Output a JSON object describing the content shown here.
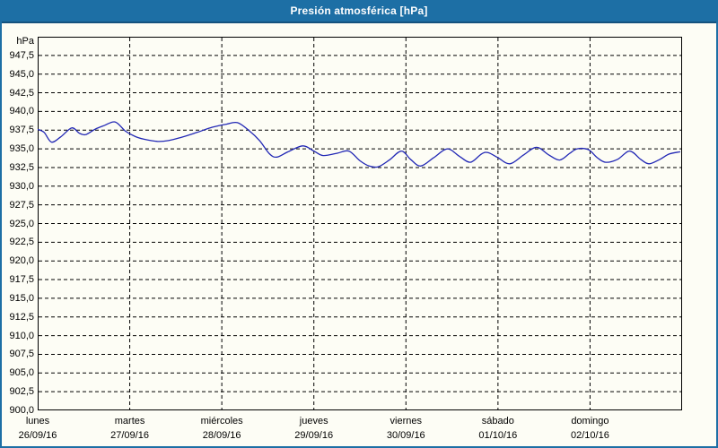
{
  "window": {
    "title": "Presión atmosférica [hPa]"
  },
  "colors": {
    "titlebar": "#1d6fa5",
    "titlebar_text": "#ffffff",
    "window_border": "#1d6fa5",
    "background": "#fdfdf5",
    "plot_border": "#000000",
    "grid": "#000000",
    "line": "#2228b5",
    "tick_text": "#000000"
  },
  "chart_data": {
    "type": "line",
    "title": "Presión atmosférica [hPa]",
    "y_unit_label": "hPa",
    "ylabel": "hPa",
    "xlabel": "",
    "ylim": [
      900,
      950
    ],
    "ytick_step": 2.5,
    "grid": "dashed",
    "legend_position": "none",
    "yticks": [
      {
        "value": 947.5,
        "label": "947,5"
      },
      {
        "value": 945.0,
        "label": "945,0"
      },
      {
        "value": 942.5,
        "label": "942,5"
      },
      {
        "value": 940.0,
        "label": "940,0"
      },
      {
        "value": 937.5,
        "label": "937,5"
      },
      {
        "value": 935.0,
        "label": "935,0"
      },
      {
        "value": 932.5,
        "label": "932,5"
      },
      {
        "value": 930.0,
        "label": "930,0"
      },
      {
        "value": 927.5,
        "label": "927,5"
      },
      {
        "value": 925.0,
        "label": "925,0"
      },
      {
        "value": 922.5,
        "label": "922,5"
      },
      {
        "value": 920.0,
        "label": "920,0"
      },
      {
        "value": 917.5,
        "label": "917,5"
      },
      {
        "value": 915.0,
        "label": "915,0"
      },
      {
        "value": 912.5,
        "label": "912,5"
      },
      {
        "value": 910.0,
        "label": "910,0"
      },
      {
        "value": 907.5,
        "label": "907,5"
      },
      {
        "value": 905.0,
        "label": "905,0"
      },
      {
        "value": 902.5,
        "label": "902,5"
      },
      {
        "value": 900.0,
        "label": "900,0"
      }
    ],
    "x_days": [
      {
        "name": "lunes",
        "date": "26/09/16"
      },
      {
        "name": "martes",
        "date": "27/09/16"
      },
      {
        "name": "miércoles",
        "date": "28/09/16"
      },
      {
        "name": "jueves",
        "date": "29/09/16"
      },
      {
        "name": "viernes",
        "date": "30/09/16"
      },
      {
        "name": "sábado",
        "date": "01/10/16"
      },
      {
        "name": "domingo",
        "date": "02/10/16"
      }
    ],
    "x_range_days": [
      0,
      7
    ],
    "series": [
      {
        "name": "Presión atmosférica",
        "unit": "hPa",
        "points": [
          [
            0.0,
            937.6
          ],
          [
            0.07,
            937.2
          ],
          [
            0.15,
            935.9
          ],
          [
            0.25,
            936.6
          ],
          [
            0.37,
            937.8
          ],
          [
            0.45,
            937.1
          ],
          [
            0.52,
            936.9
          ],
          [
            0.62,
            937.6
          ],
          [
            0.72,
            938.1
          ],
          [
            0.84,
            938.6
          ],
          [
            0.95,
            937.4
          ],
          [
            1.05,
            936.7
          ],
          [
            1.15,
            936.3
          ],
          [
            1.3,
            936.0
          ],
          [
            1.42,
            936.1
          ],
          [
            1.55,
            936.5
          ],
          [
            1.73,
            937.2
          ],
          [
            1.9,
            937.9
          ],
          [
            2.05,
            938.3
          ],
          [
            2.17,
            938.5
          ],
          [
            2.3,
            937.4
          ],
          [
            2.41,
            936.1
          ],
          [
            2.52,
            934.3
          ],
          [
            2.6,
            933.9
          ],
          [
            2.72,
            934.6
          ],
          [
            2.88,
            935.4
          ],
          [
            3.0,
            934.7
          ],
          [
            3.1,
            934.1
          ],
          [
            3.25,
            934.4
          ],
          [
            3.38,
            934.7
          ],
          [
            3.5,
            933.4
          ],
          [
            3.6,
            932.7
          ],
          [
            3.7,
            932.6
          ],
          [
            3.82,
            933.5
          ],
          [
            3.95,
            934.7
          ],
          [
            4.05,
            933.6
          ],
          [
            4.16,
            932.7
          ],
          [
            4.3,
            933.8
          ],
          [
            4.45,
            935.0
          ],
          [
            4.58,
            934.0
          ],
          [
            4.7,
            933.2
          ],
          [
            4.82,
            934.3
          ],
          [
            4.89,
            934.5
          ],
          [
            5.0,
            933.8
          ],
          [
            5.13,
            933.0
          ],
          [
            5.28,
            934.2
          ],
          [
            5.42,
            935.2
          ],
          [
            5.55,
            934.2
          ],
          [
            5.67,
            933.5
          ],
          [
            5.78,
            934.4
          ],
          [
            5.86,
            935.0
          ],
          [
            5.98,
            934.9
          ],
          [
            6.08,
            933.8
          ],
          [
            6.17,
            933.2
          ],
          [
            6.3,
            933.6
          ],
          [
            6.43,
            934.7
          ],
          [
            6.55,
            933.6
          ],
          [
            6.64,
            933.0
          ],
          [
            6.76,
            933.6
          ],
          [
            6.86,
            934.3
          ],
          [
            6.98,
            934.6
          ]
        ]
      }
    ]
  }
}
